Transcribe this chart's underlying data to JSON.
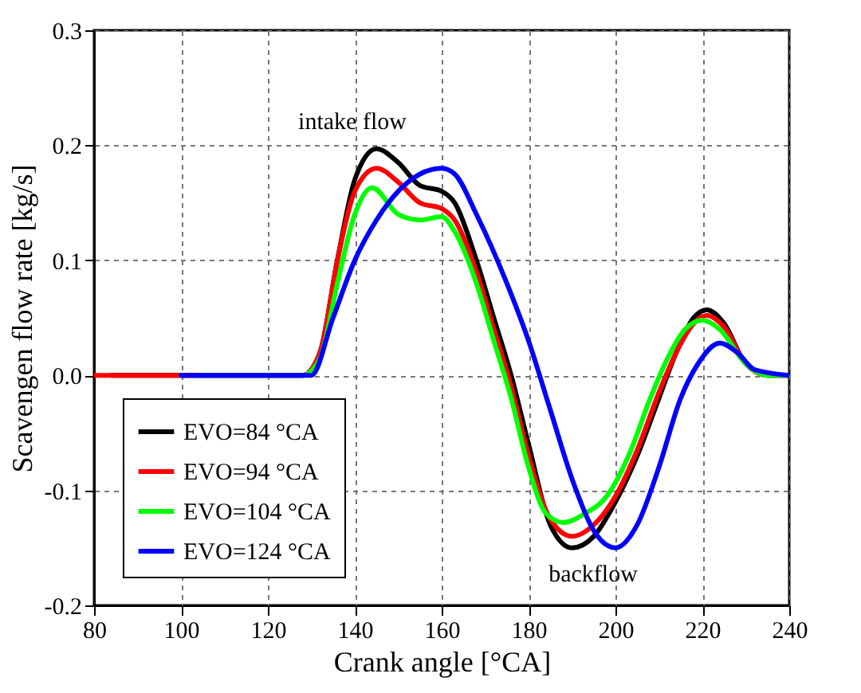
{
  "chart_data": {
    "type": "line",
    "xlabel": "Crank angle [°CA]",
    "ylabel": "Scavengen flow rate [kg/s]",
    "xlim": [
      80,
      240
    ],
    "xticks": [
      80,
      100,
      120,
      140,
      160,
      180,
      200,
      220,
      240
    ],
    "ylim": [
      -0.2,
      0.3
    ],
    "yticks": [
      -0.2,
      -0.1,
      {
        "value": 0,
        "label": "0.0"
      },
      0.1,
      0.2,
      0.3
    ],
    "grid": true,
    "legend": "bottom left",
    "line_style": "solid",
    "annotations": [
      "intake flow",
      "backflow"
    ],
    "series": [
      {
        "name": "EVO=84 °CA",
        "color": "#000000",
        "x": [
          84,
          128,
          132,
          136,
          140,
          145,
          150,
          155,
          160,
          163,
          168,
          172,
          176,
          180,
          185,
          190,
          195,
          200,
          205,
          210,
          214,
          218,
          221,
          225,
          230,
          235,
          240
        ],
        "values": [
          0,
          0,
          0.02,
          0.1,
          0.17,
          0.197,
          0.185,
          0.165,
          0.16,
          0.15,
          0.1,
          0.05,
          0,
          -0.06,
          -0.13,
          -0.15,
          -0.14,
          -0.11,
          -0.07,
          -0.02,
          0.02,
          0.05,
          0.057,
          0.045,
          0.01,
          0,
          0
        ]
      },
      {
        "name": "EVO=94 °CA",
        "color": "#ff0000",
        "x": [
          80,
          128,
          132,
          136,
          140,
          145,
          150,
          155,
          160,
          163,
          168,
          172,
          176,
          180,
          185,
          190,
          195,
          200,
          205,
          210,
          214,
          218,
          221,
          225,
          230,
          235,
          240
        ],
        "values": [
          0,
          0,
          0.02,
          0.1,
          0.16,
          0.18,
          0.168,
          0.15,
          0.145,
          0.135,
          0.09,
          0.04,
          -0.01,
          -0.07,
          -0.125,
          -0.14,
          -0.13,
          -0.105,
          -0.065,
          -0.015,
          0.02,
          0.045,
          0.052,
          0.042,
          0.01,
          0,
          0
        ]
      },
      {
        "name": "EVO=104 °CA",
        "color": "#00ff00",
        "x": [
          104,
          128,
          132,
          136,
          140,
          144,
          150,
          155,
          160,
          163,
          168,
          172,
          176,
          180,
          184,
          188,
          193,
          198,
          203,
          208,
          212,
          216,
          220,
          224,
          230,
          235,
          240
        ],
        "values": [
          0,
          0,
          0.015,
          0.08,
          0.14,
          0.163,
          0.14,
          0.135,
          0.138,
          0.125,
          0.08,
          0.03,
          -0.02,
          -0.08,
          -0.12,
          -0.128,
          -0.12,
          -0.105,
          -0.07,
          -0.02,
          0.015,
          0.04,
          0.048,
          0.04,
          0.01,
          0,
          0
        ]
      },
      {
        "name": "EVO=124 °CA",
        "color": "#0000ff",
        "x": [
          100,
          130,
          135,
          140,
          145,
          150,
          155,
          160,
          163,
          168,
          175,
          180,
          185,
          190,
          195,
          200,
          205,
          210,
          215,
          219,
          224,
          228,
          232,
          240
        ],
        "values": [
          0,
          0,
          0.05,
          0.1,
          0.135,
          0.16,
          0.175,
          0.18,
          0.175,
          0.14,
          0.08,
          0.03,
          -0.03,
          -0.09,
          -0.135,
          -0.15,
          -0.13,
          -0.08,
          -0.02,
          0.01,
          0.028,
          0.02,
          0.005,
          0
        ]
      }
    ]
  }
}
